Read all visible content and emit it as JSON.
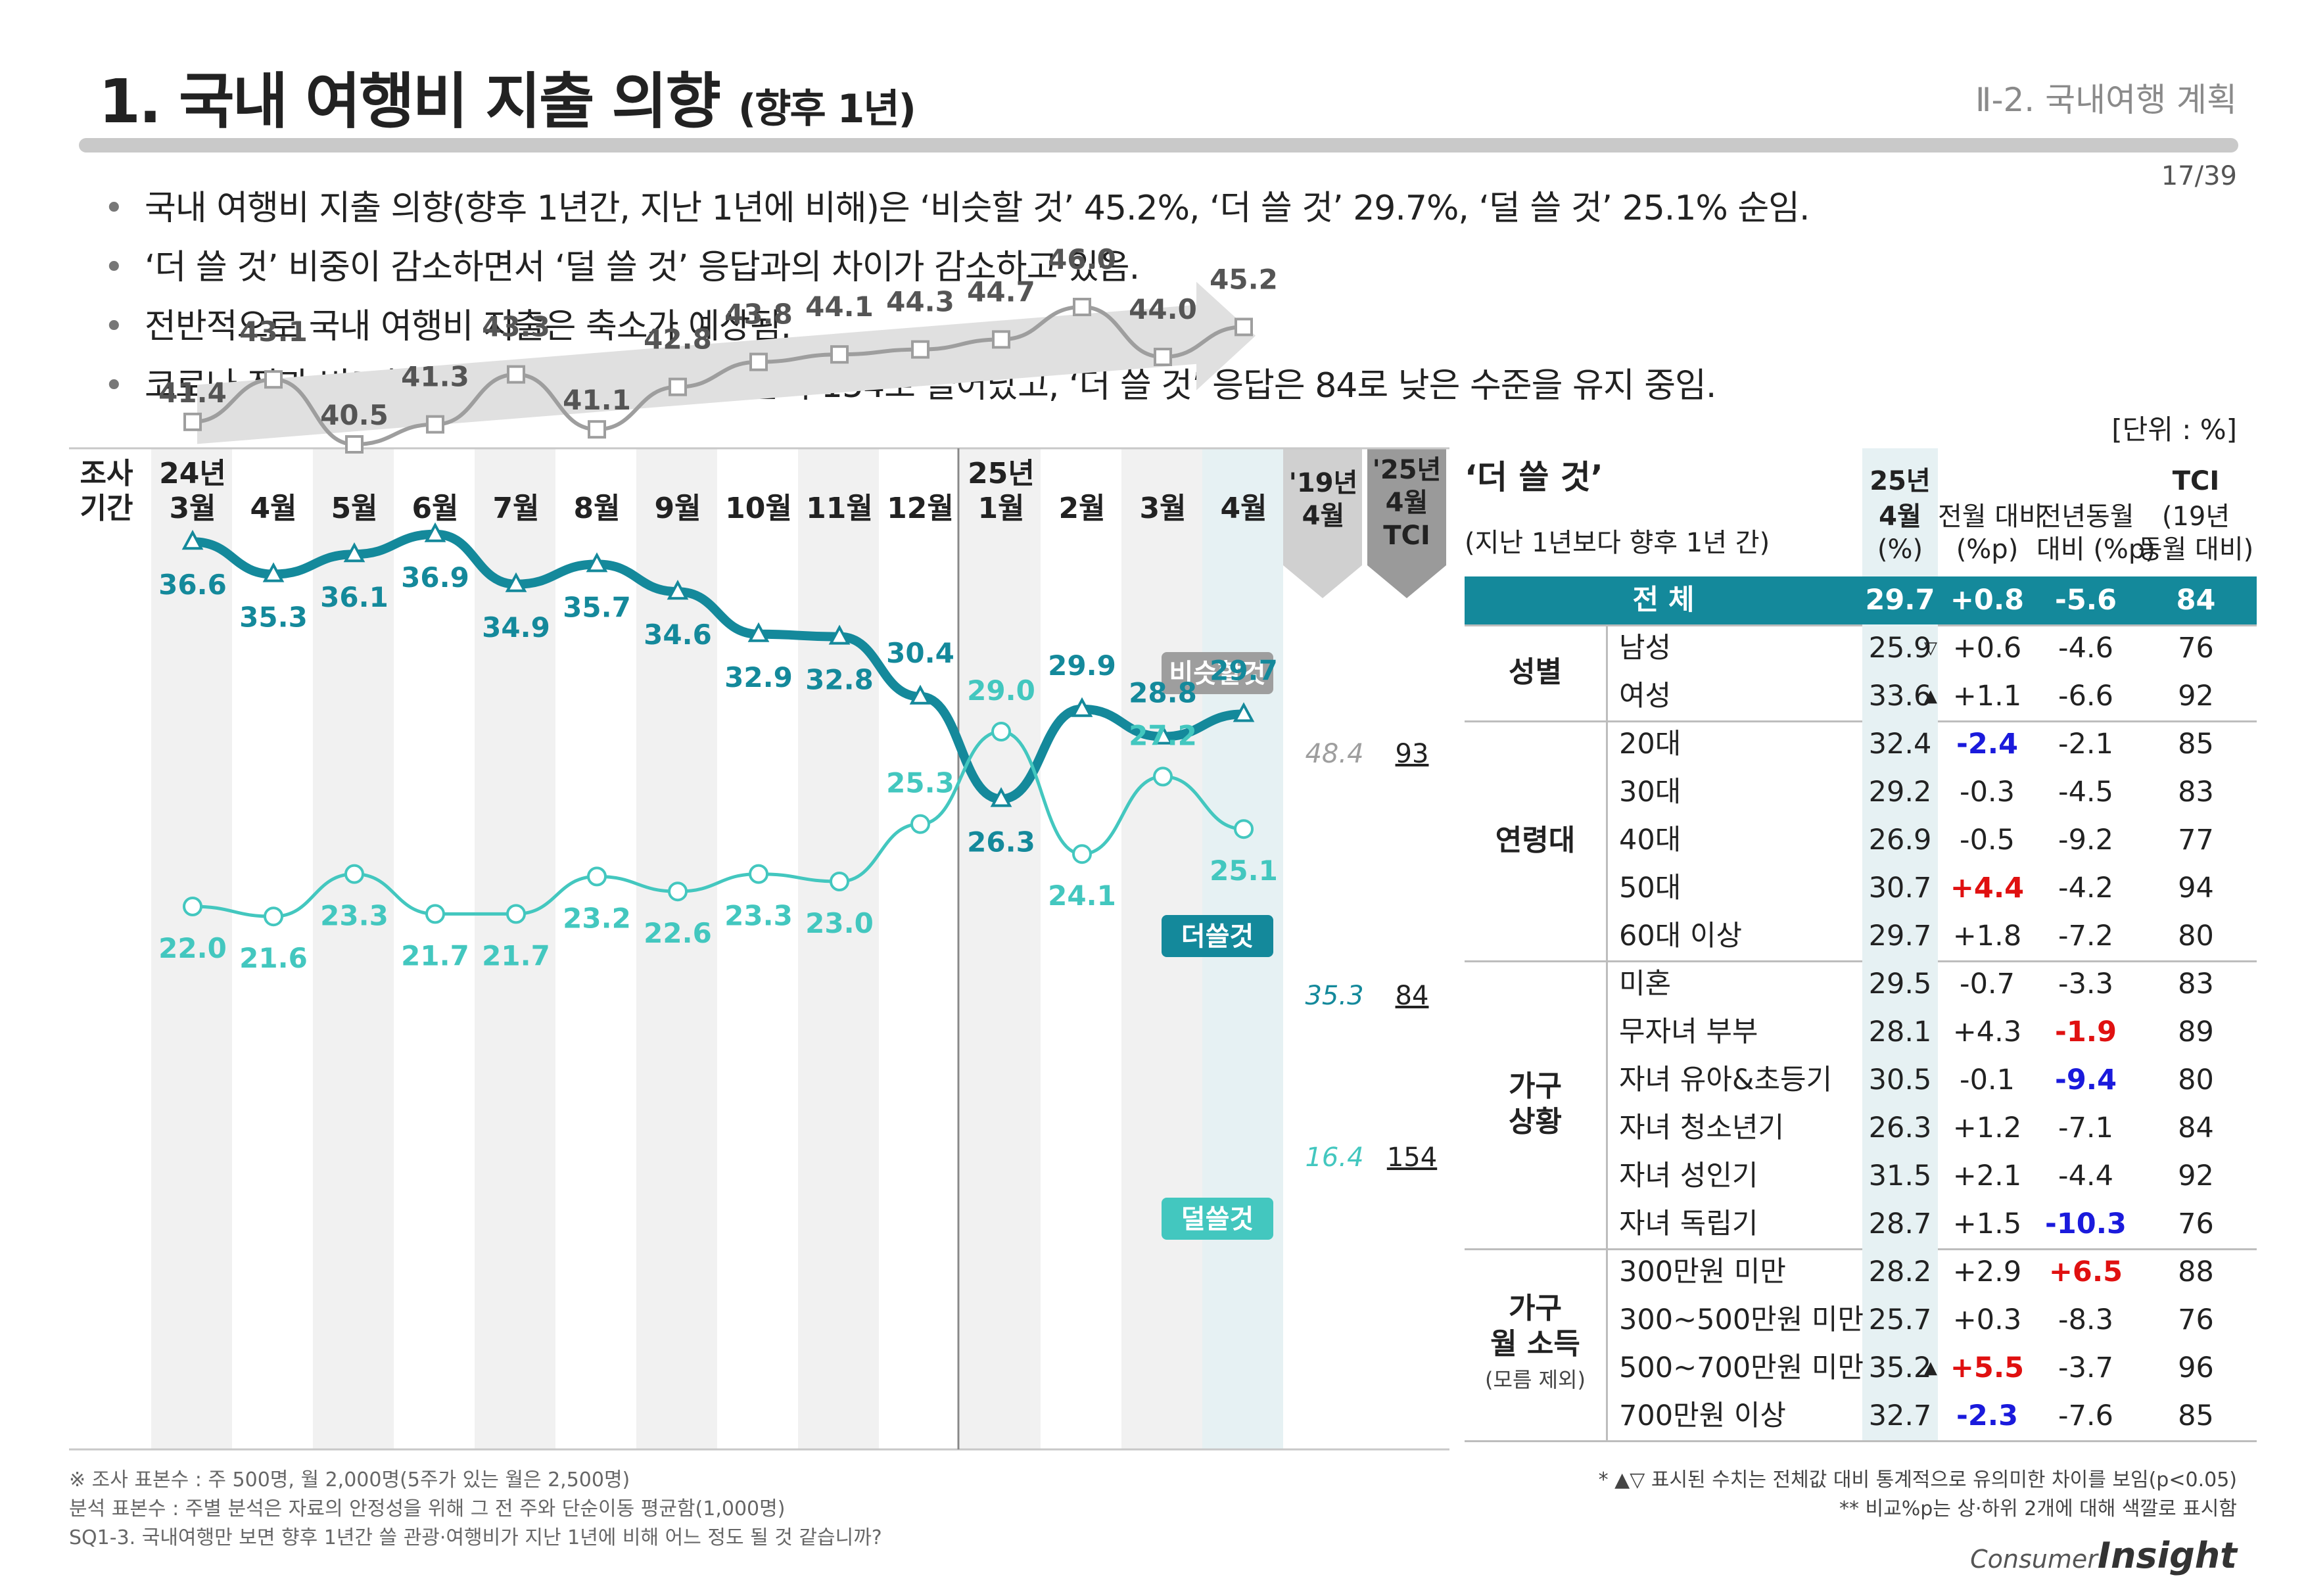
{
  "header": {
    "title": "1. 국내 여행비 지출 의향",
    "title_sub": "(향후 1년)",
    "section": "Ⅱ-2. 국내여행 계획",
    "page": "17/39"
  },
  "bullets": [
    "국내 여행비 지출 의향(향후 1년간, 지난 1년에 비해)은 ‘비슷할 것’ 45.2%, ‘더 쓸 것’ 29.7%, ‘덜 쓸 것’ 25.1% 순임.",
    "‘더 쓸 것’ 비중이 감소하면서 ‘덜 쓸 것’ 응답과의 차이가 감소하고 있음.",
    "전반적으로 국내 여행비 지출은 축소가 예상됨.",
    "코로나 전과 비교한 TCI에서는 ‘덜 쓸 것’ 응답이 154로 늘어났고, ‘더 쓸 것’ 응답은 84로 낮은 수준을 유지 중임."
  ],
  "unit": "[단위 : %]",
  "chart_data": {
    "type": "line",
    "period_label": [
      "조사",
      "기간"
    ],
    "categories": [
      [
        "24년",
        "3월"
      ],
      [
        "",
        "4월"
      ],
      [
        "",
        "5월"
      ],
      [
        "",
        "6월"
      ],
      [
        "",
        "7월"
      ],
      [
        "",
        "8월"
      ],
      [
        "",
        "9월"
      ],
      [
        "",
        "10월"
      ],
      [
        "",
        "11월"
      ],
      [
        "",
        "12월"
      ],
      [
        "25년",
        "1월"
      ],
      [
        "",
        "2월"
      ],
      [
        "",
        "3월"
      ],
      [
        "",
        "4월"
      ]
    ],
    "ref_headers": [
      [
        "'19년",
        "4월"
      ],
      [
        "'25년",
        "4월",
        "TCI"
      ]
    ],
    "series": [
      {
        "name": "비슷할것",
        "color": "#9e9e9e",
        "values": [
          41.4,
          43.1,
          40.5,
          41.3,
          43.3,
          41.1,
          42.8,
          43.8,
          44.1,
          44.3,
          44.7,
          46.0,
          44.0,
          45.2
        ],
        "labels": [
          "41.4",
          "43.1",
          "40.5",
          "41.3",
          "43.3",
          "41.1",
          "42.8",
          "43.8",
          "44.1",
          "44.3",
          "44.7",
          "46.0",
          "44.0",
          "45.2"
        ],
        "ref_2019": "48.4",
        "tci": "93"
      },
      {
        "name": "더쓸것",
        "color": "#14899b",
        "values": [
          36.6,
          35.3,
          36.1,
          36.9,
          34.9,
          35.7,
          34.6,
          32.9,
          32.8,
          30.4,
          26.3,
          29.9,
          28.8,
          29.7
        ],
        "labels": [
          "36.6",
          "35.3",
          "36.1",
          "36.9",
          "34.9",
          "35.7",
          "34.6",
          "32.9",
          "32.8",
          "30.4",
          "26.3",
          "29.9",
          "28.8",
          "29.7"
        ],
        "ref_2019": "35.3",
        "tci": "84"
      },
      {
        "name": "덜쓸것",
        "color": "#43c7bf",
        "values": [
          22.0,
          21.6,
          23.3,
          21.7,
          21.7,
          23.2,
          22.6,
          23.3,
          23.0,
          25.3,
          29.0,
          24.1,
          27.2,
          25.1
        ],
        "labels": [
          "22.0",
          "21.6",
          "23.3",
          "21.7",
          "21.7",
          "23.2",
          "22.6",
          "23.3",
          "23.0",
          "25.3",
          "29.0",
          "24.1",
          "27.2",
          "25.1"
        ],
        "ref_2019": "16.4",
        "tci": "154"
      }
    ]
  },
  "table": {
    "title": "‘더 쓸 것’",
    "subtitle": "(지난 1년보다 향후 1년 간)",
    "headers": {
      "c1": [
        "25년",
        "4월",
        "(%)"
      ],
      "c2": [
        "전월 대비",
        "(%p)"
      ],
      "c3": [
        "전년동월",
        "대비 (%p)"
      ],
      "c4": [
        "TCI",
        "(19년",
        "동월 대비)"
      ]
    },
    "total": {
      "label": "전 체",
      "v1": "29.7",
      "v2": "+0.8",
      "v3": "-5.6",
      "v4": "84"
    },
    "groups": [
      {
        "label": [
          "성별"
        ],
        "rows": [
          {
            "item": "남성",
            "v1": "25.9",
            "mark": "▽",
            "v2": "+0.6",
            "v3": "-4.6",
            "v4": "76"
          },
          {
            "item": "여성",
            "v1": "33.6",
            "mark": "▲",
            "v2": "+1.1",
            "v3": "-6.6",
            "v4": "92"
          }
        ]
      },
      {
        "label": [
          "연령대"
        ],
        "rows": [
          {
            "item": "20대",
            "v1": "32.4",
            "v2": "-2.4",
            "c2": "blue",
            "v3": "-2.1",
            "v4": "85"
          },
          {
            "item": "30대",
            "v1": "29.2",
            "v2": "-0.3",
            "v3": "-4.5",
            "v4": "83"
          },
          {
            "item": "40대",
            "v1": "26.9",
            "v2": "-0.5",
            "v3": "-9.2",
            "v4": "77"
          },
          {
            "item": "50대",
            "v1": "30.7",
            "v2": "+4.4",
            "c2": "red",
            "v3": "-4.2",
            "v4": "94"
          },
          {
            "item": "60대 이상",
            "v1": "29.7",
            "v2": "+1.8",
            "v3": "-7.2",
            "v4": "80"
          }
        ]
      },
      {
        "label": [
          "가구",
          "상황"
        ],
        "rows": [
          {
            "item": "미혼",
            "v1": "29.5",
            "v2": "-0.7",
            "v3": "-3.3",
            "v4": "83"
          },
          {
            "item": "무자녀 부부",
            "v1": "28.1",
            "v2": "+4.3",
            "v3": "-1.9",
            "c3": "red",
            "v4": "89"
          },
          {
            "item": "자녀 유아&초등기",
            "v1": "30.5",
            "v2": "-0.1",
            "v3": "-9.4",
            "c3": "blue",
            "v4": "80"
          },
          {
            "item": "자녀 청소년기",
            "v1": "26.3",
            "v2": "+1.2",
            "v3": "-7.1",
            "v4": "84"
          },
          {
            "item": "자녀 성인기",
            "v1": "31.5",
            "v2": "+2.1",
            "v3": "-4.4",
            "v4": "92"
          },
          {
            "item": "자녀 독립기",
            "v1": "28.7",
            "v2": "+1.5",
            "v3": "-10.3",
            "c3": "blue",
            "v4": "76"
          }
        ]
      },
      {
        "label": [
          "가구",
          "월 소득"
        ],
        "note": "(모름 제외)",
        "rows": [
          {
            "item": "300만원 미만",
            "v1": "28.2",
            "v2": "+2.9",
            "v3": "+6.5",
            "c3": "red",
            "v4": "88"
          },
          {
            "item": "300~500만원 미만",
            "v1": "25.7",
            "v2": "+0.3",
            "v3": "-8.3",
            "v4": "76"
          },
          {
            "item": "500~700만원 미만",
            "v1": "35.2",
            "mark": "▲",
            "v2": "+5.5",
            "c2": "red",
            "v3": "-3.7",
            "v4": "96"
          },
          {
            "item": "700만원 이상",
            "v1": "32.7",
            "v2": "-2.3",
            "c2": "blue",
            "v3": "-7.6",
            "v4": "85"
          }
        ]
      }
    ]
  },
  "footnotes_left": [
    "※ 조사 표본수 : 주 500명, 월 2,000명(5주가 있는 월은 2,500명)",
    " 분석 표본수 : 주별 분석은 자료의 안정성을 위해 그 전 주와 단순이동 평균함(1,000명)",
    "SQ1-3. 국내여행만 보면 향후 1년간 쓸 관광·여행비가 지난 1년에 비해 어느 정도 될 것 같습니까?"
  ],
  "footnotes_right": [
    "* ▲▽ 표시된 수치는 전체값 대비 통계적으로 유의미한 차이를 보임(p<0.05)",
    "** 비교%p는 상·하위 2개에 대해 색깔로 표시함"
  ],
  "logo": {
    "a": "Consumer",
    "b": "Insight"
  },
  "colors": {
    "teal_header": "#14899b",
    "gray_line": "#9e9e9e",
    "dark_teal": "#14899b",
    "light_teal": "#43c7bf",
    "red": "#e01010",
    "blue": "#1a1adc"
  }
}
